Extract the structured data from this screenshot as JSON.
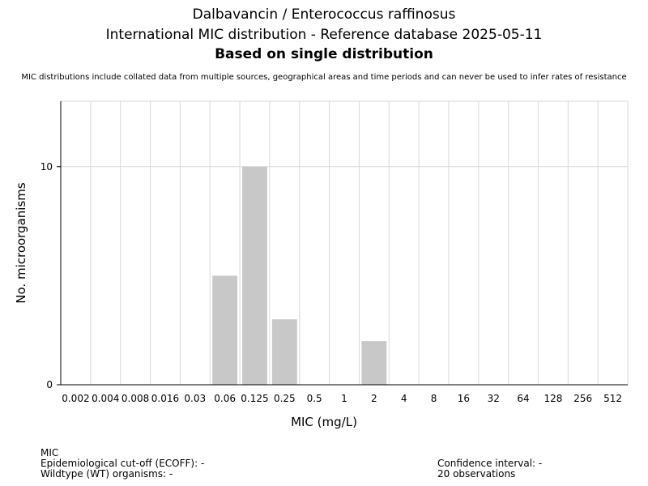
{
  "chart_data": {
    "type": "bar",
    "title": "Dalbavancin / Enterococcus raffinosus",
    "subtitle": "International MIC distribution - Reference database 2025-05-11",
    "subtitle2": "Based on single distribution",
    "note": "MIC distributions include collated data from multiple sources, geographical areas and time periods and can never be used to infer rates of resistance",
    "xlabel": "MIC (mg/L)",
    "ylabel": "No. microorganisms",
    "categories": [
      "0.002",
      "0.004",
      "0.008",
      "0.016",
      "0.03",
      "0.06",
      "0.125",
      "0.25",
      "0.5",
      "1",
      "2",
      "4",
      "8",
      "16",
      "32",
      "64",
      "128",
      "256",
      "512"
    ],
    "values": [
      0,
      0,
      0,
      0,
      0,
      5,
      10,
      3,
      0,
      0,
      2,
      0,
      0,
      0,
      0,
      0,
      0,
      0,
      0
    ],
    "yticks": [
      0,
      10
    ],
    "ylim": [
      0,
      13
    ],
    "grid": true,
    "bar_color": "#c8c8c8"
  },
  "footer": {
    "mic_label": "MIC",
    "ecoff": "Epidemiological cut-off (ECOFF): -",
    "wt": "Wildtype (WT) organisms:  -",
    "ci": "Confidence interval: -",
    "observations": "20 observations"
  }
}
